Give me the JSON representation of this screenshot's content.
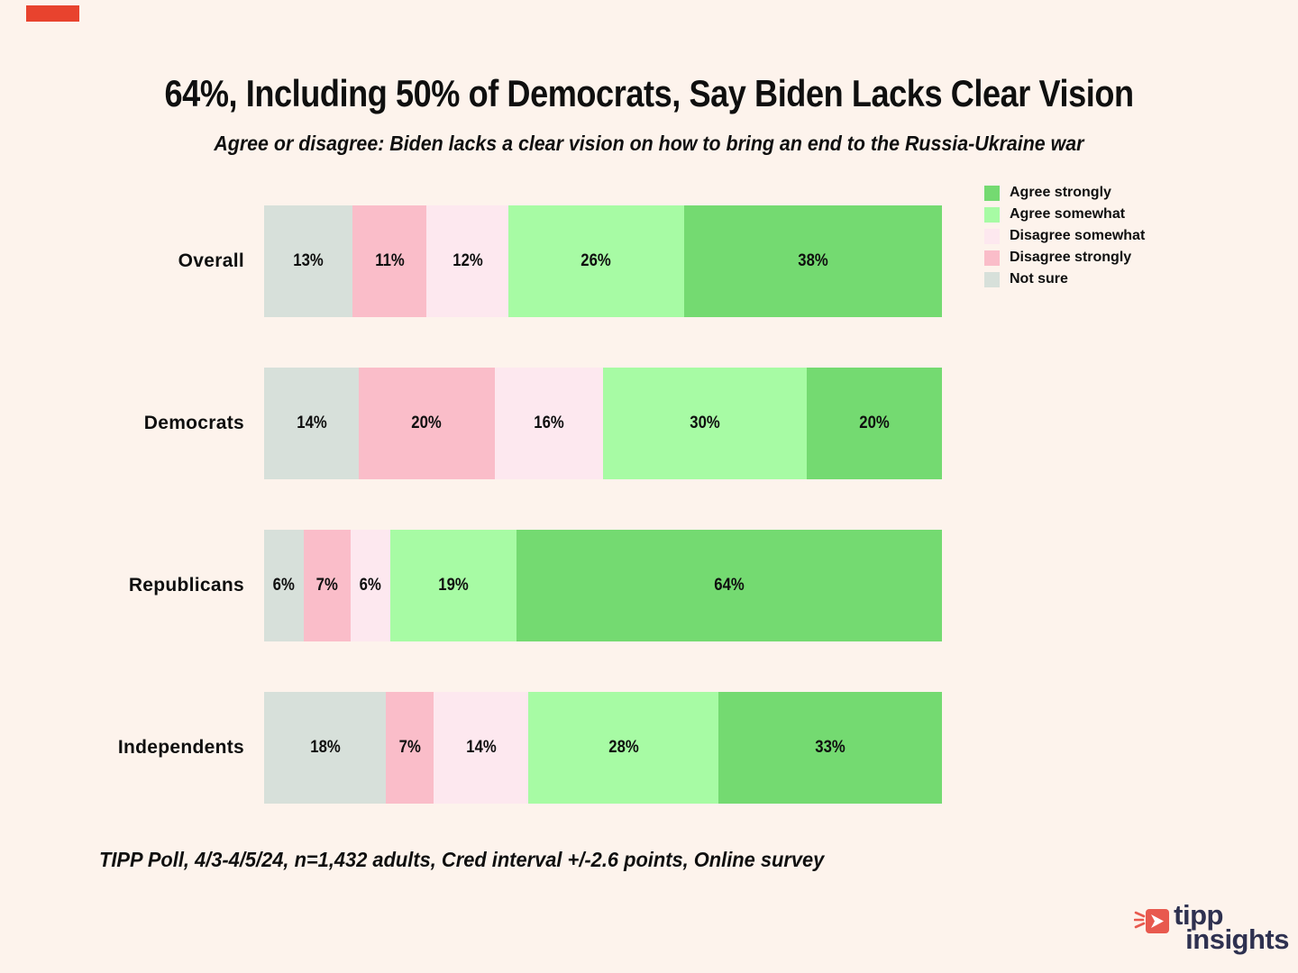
{
  "page": {
    "background_color": "#fdf3ec",
    "accent_bar_color": "#e8432e",
    "title": "64%, Including 50% of Democrats, Say Biden Lacks Clear Vision",
    "subtitle": "Agree or disagree:  Biden lacks a clear vision on how to bring an end to the Russia-Ukraine war",
    "footnote": "TIPP Poll, 4/3-4/5/24, n=1,432 adults, Cred interval +/-2.6 points, Online survey"
  },
  "chart_data": {
    "type": "bar",
    "orientation": "horizontal",
    "stacked": true,
    "value_suffix": "%",
    "categories": [
      "Overall",
      "Democrats",
      "Republicans",
      "Independents"
    ],
    "series": [
      {
        "name": "Not sure",
        "color": "#d7e0da",
        "values": [
          13,
          14,
          6,
          18
        ]
      },
      {
        "name": "Disagree strongly",
        "color": "#fabdc9",
        "values": [
          11,
          20,
          7,
          7
        ]
      },
      {
        "name": "Disagree somewhat",
        "color": "#fde8ef",
        "values": [
          12,
          16,
          6,
          14
        ]
      },
      {
        "name": "Agree somewhat",
        "color": "#a7fba4",
        "values": [
          26,
          30,
          19,
          28
        ]
      },
      {
        "name": "Agree strongly",
        "color": "#74da71",
        "values": [
          38,
          20,
          64,
          33
        ]
      }
    ],
    "legend": {
      "position": "top-right",
      "order": [
        "Agree strongly",
        "Agree somewhat",
        "Disagree somewhat",
        "Disagree strongly",
        "Not sure"
      ]
    },
    "grid": false,
    "axis_labels_shown": false
  },
  "logo": {
    "line1": "tipp",
    "line2": "insights",
    "text_color": "#2e3150",
    "icon_color": "#e8594e",
    "icon": "tipp-arrow-icon"
  }
}
